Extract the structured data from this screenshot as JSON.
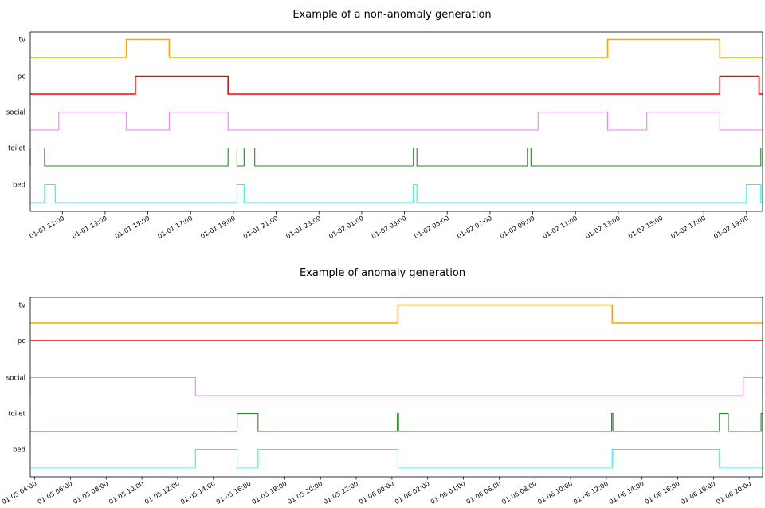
{
  "chart_data": [
    {
      "type": "line",
      "title": "Example of a non-anomaly generation",
      "xlim": [
        "2024-01-01 09:30",
        "2024-01-02 19:45"
      ],
      "xticks": [
        "01-01 11:00",
        "01-01 13:00",
        "01-01 15:00",
        "01-01 17:00",
        "01-01 19:00",
        "01-01 21:00",
        "01-01 23:00",
        "01-02 01:00",
        "01-02 03:00",
        "01-02 05:00",
        "01-02 07:00",
        "01-02 09:00",
        "01-02 11:00",
        "01-02 13:00",
        "01-02 15:00",
        "01-02 17:00",
        "01-02 19:00"
      ],
      "series": [
        {
          "name": "tv",
          "color": "#ffa500",
          "on": [
            [
              "2024-01-01 14:00",
              "2024-01-01 16:00"
            ],
            [
              "2024-01-02 12:30",
              "2024-01-02 17:45"
            ]
          ]
        },
        {
          "name": "pc",
          "color": "#ff0000",
          "on": [
            [
              "2024-01-01 14:25",
              "2024-01-01 18:45"
            ],
            [
              "2024-01-02 17:45",
              "2024-01-02 19:35"
            ]
          ]
        },
        {
          "name": "social",
          "color": "#ee82ee",
          "on": [
            [
              "2024-01-01 10:50",
              "2024-01-01 14:00"
            ],
            [
              "2024-01-01 16:00",
              "2024-01-01 18:45"
            ],
            [
              "2024-01-02 09:15",
              "2024-01-02 12:30"
            ],
            [
              "2024-01-02 14:20",
              "2024-01-02 17:45"
            ]
          ]
        },
        {
          "name": "toilet",
          "color": "#228b22",
          "on": [
            [
              "2024-01-01 09:30",
              "2024-01-01 10:10"
            ],
            [
              "2024-01-01 18:45",
              "2024-01-01 19:10"
            ],
            [
              "2024-01-01 19:30",
              "2024-01-01 20:00"
            ],
            [
              "2024-01-02 03:25",
              "2024-01-02 03:35"
            ],
            [
              "2024-01-02 08:45",
              "2024-01-02 08:55"
            ],
            [
              "2024-01-02 19:40",
              "2024-01-02 19:45"
            ]
          ]
        },
        {
          "name": "bed",
          "color": "#00ffff",
          "on": [
            [
              "2024-01-01 10:10",
              "2024-01-01 10:40"
            ],
            [
              "2024-01-01 19:10",
              "2024-01-01 19:30"
            ],
            [
              "2024-01-02 03:25",
              "2024-01-02 03:35"
            ],
            [
              "2024-01-02 19:00",
              "2024-01-02 19:40"
            ]
          ],
          "default_on": true
        }
      ]
    },
    {
      "type": "line",
      "title": "Example of anomaly generation",
      "xlim": [
        "2024-01-05 03:45",
        "2024-01-06 20:45"
      ],
      "xticks": [
        "01-05 04:00",
        "01-05 06:00",
        "01-05 08:00",
        "01-05 10:00",
        "01-05 12:00",
        "01-05 14:00",
        "01-05 16:00",
        "01-05 18:00",
        "01-05 20:00",
        "01-05 22:00",
        "01-06 00:00",
        "01-06 02:00",
        "01-06 04:00",
        "01-06 06:00",
        "01-06 08:00",
        "01-06 10:00",
        "01-06 12:00",
        "01-06 14:00",
        "01-06 16:00",
        "01-06 18:00",
        "01-06 20:00"
      ],
      "series": [
        {
          "name": "tv",
          "color": "#ffa500",
          "on": [
            [
              "2024-01-06 00:20",
              "2024-01-06 12:20"
            ]
          ]
        },
        {
          "name": "pc",
          "color": "#ff0000",
          "on": []
        },
        {
          "name": "social",
          "color": "#ee82ee",
          "on": [
            [
              "2024-01-05 03:45",
              "2024-01-05 13:00"
            ],
            [
              "2024-01-06 19:40",
              "2024-01-06 20:45"
            ]
          ]
        },
        {
          "name": "toilet",
          "color": "#228b22",
          "on": [
            [
              "2024-01-05 15:20",
              "2024-01-05 16:30"
            ],
            [
              "2024-01-06 00:18",
              "2024-01-06 00:22"
            ],
            [
              "2024-01-06 12:18",
              "2024-01-06 12:22"
            ],
            [
              "2024-01-06 18:20",
              "2024-01-06 18:50"
            ],
            [
              "2024-01-06 20:40",
              "2024-01-06 20:45"
            ]
          ]
        },
        {
          "name": "bed",
          "color": "#00ffff",
          "on": [
            [
              "2024-01-05 13:00",
              "2024-01-05 15:20"
            ],
            [
              "2024-01-05 16:30",
              "2024-01-06 00:20"
            ],
            [
              "2024-01-06 12:20",
              "2024-01-06 18:20"
            ]
          ]
        }
      ]
    }
  ]
}
